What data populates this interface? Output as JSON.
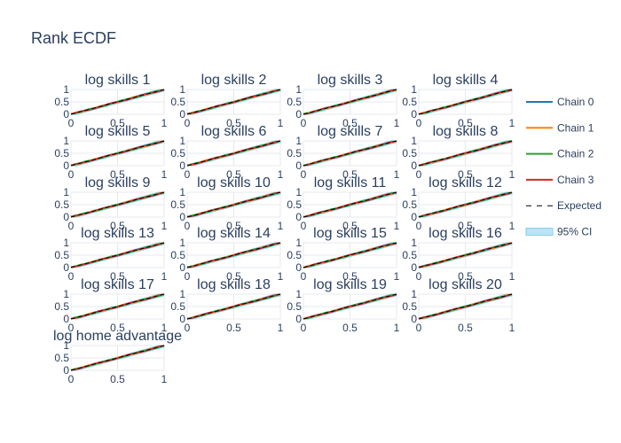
{
  "chart_data": {
    "type": "line",
    "title": "Rank ECDF",
    "x_ticks": [
      "0",
      "0.5",
      "1"
    ],
    "y_ticks": [
      "0",
      "0.5",
      "1"
    ],
    "xlim": [
      0,
      1
    ],
    "ylim": [
      0,
      1
    ],
    "grid": true,
    "legend_placement": "right",
    "colors": {
      "Chain 0": "#1f77b4",
      "Chain 1": "#ff7f0e",
      "Chain 2": "#2ca02c",
      "Chain 3": "#d62728",
      "Expected": "#000000",
      "95% CI": "#87ceeb"
    },
    "legend": [
      {
        "name": "Chain 0",
        "style": "solid"
      },
      {
        "name": "Chain 1",
        "style": "solid"
      },
      {
        "name": "Chain 2",
        "style": "solid"
      },
      {
        "name": "Chain 3",
        "style": "solid"
      },
      {
        "name": "Expected",
        "style": "dash"
      },
      {
        "name": "95% CI",
        "style": "band"
      }
    ],
    "expected": {
      "x": [
        0,
        1
      ],
      "y": [
        0,
        1
      ]
    },
    "ci_halfwidth": 0.06,
    "panels": [
      {
        "title": "log skills 1"
      },
      {
        "title": "log skills 2"
      },
      {
        "title": "log skills 3"
      },
      {
        "title": "log skills 4"
      },
      {
        "title": "log skills 5"
      },
      {
        "title": "log skills 6"
      },
      {
        "title": "log skills 7"
      },
      {
        "title": "log skills 8"
      },
      {
        "title": "log skills 9"
      },
      {
        "title": "log skills 10"
      },
      {
        "title": "log skills 11"
      },
      {
        "title": "log skills 12"
      },
      {
        "title": "log skills 13"
      },
      {
        "title": "log skills 14"
      },
      {
        "title": "log skills 15"
      },
      {
        "title": "log skills 16"
      },
      {
        "title": "log skills 17"
      },
      {
        "title": "log skills 18"
      },
      {
        "title": "log skills 19"
      },
      {
        "title": "log skills 20"
      },
      {
        "title": "log home advantage"
      }
    ]
  }
}
